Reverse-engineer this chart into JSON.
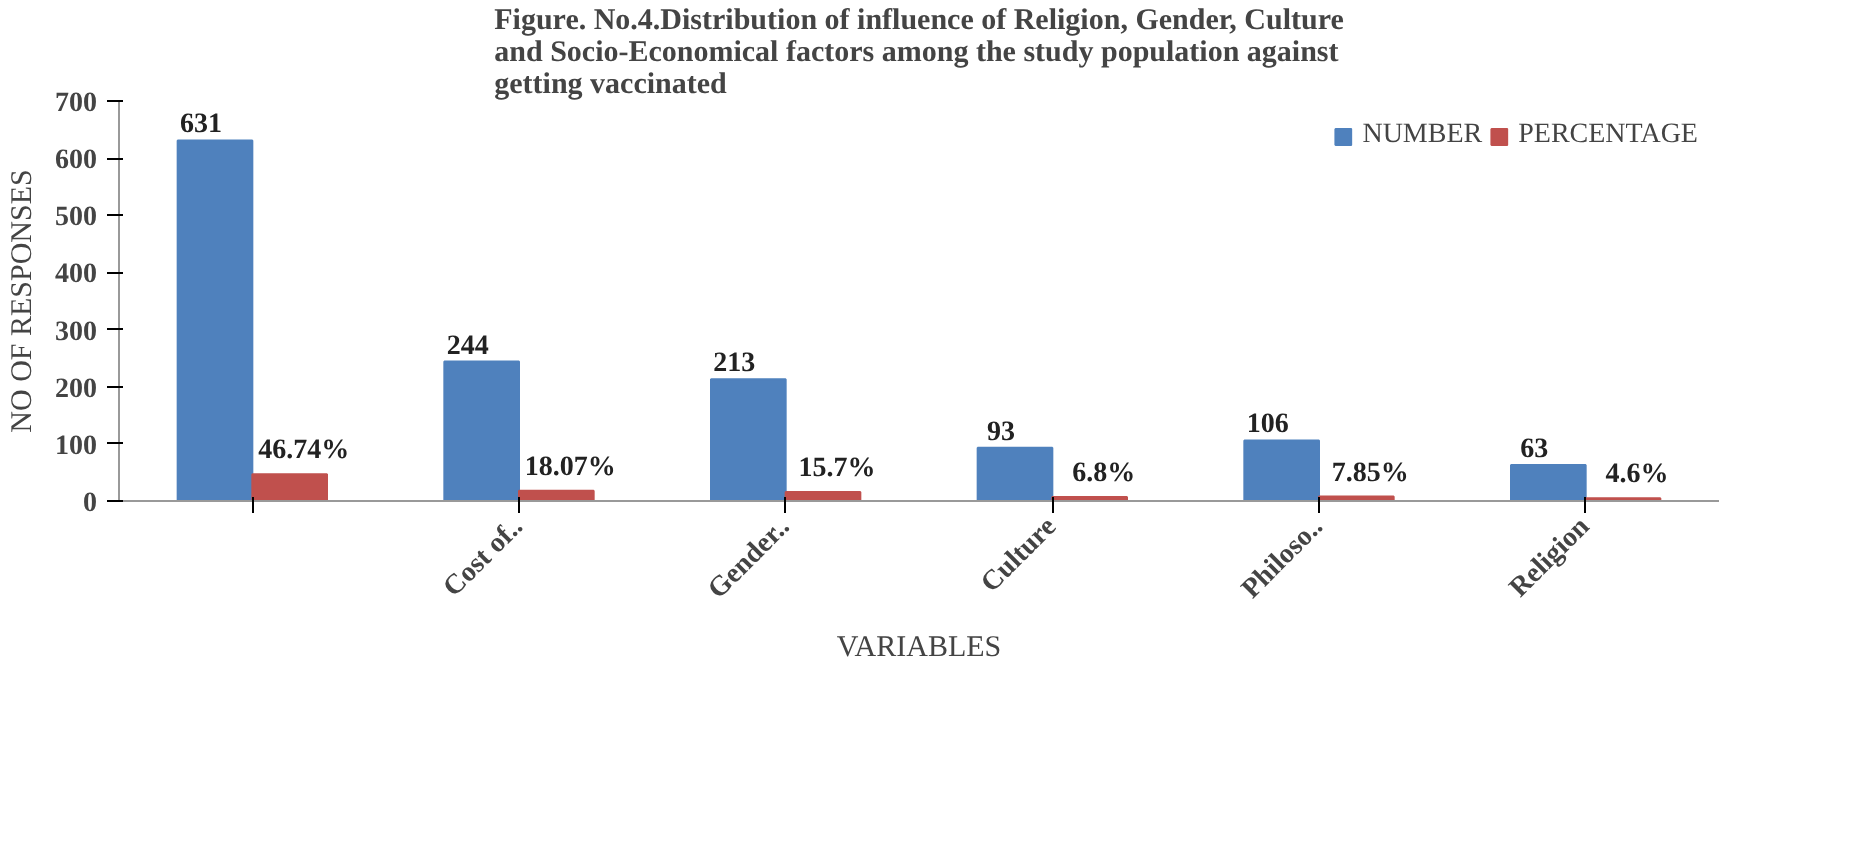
{
  "chart_data": {
    "type": "bar",
    "title": "Figure. No.4.Distribution of influence of Religion, Gender, Culture and Socio-Economical factors among the study population against getting vaccinated",
    "xlabel": "VARIABLES",
    "ylabel": "NO OF RESPONSES",
    "categories": [
      null,
      "Cost of..",
      "Gender..",
      "Culture",
      "Philoso..",
      "Religion"
    ],
    "series": [
      {
        "name": "NUMBER",
        "color": "#4f81bd",
        "values": [
          631,
          244,
          213,
          93,
          106,
          63
        ],
        "value_labels": [
          "631",
          "244",
          "213",
          "93",
          "106",
          "63"
        ]
      },
      {
        "name": "PERCENTAGE",
        "color": "#c0504d",
        "values": [
          46.74,
          18.07,
          15.7,
          6.8,
          7.85,
          4.6
        ],
        "value_labels": [
          "46.74%",
          "18.07%",
          "15.7%",
          "6.8%",
          "7.85%",
          "4.6%"
        ]
      }
    ],
    "ylim": [
      0,
      700
    ],
    "yticks": [
      0,
      100,
      200,
      300,
      400,
      500,
      600,
      700
    ],
    "grid": false,
    "legend": "top right"
  }
}
